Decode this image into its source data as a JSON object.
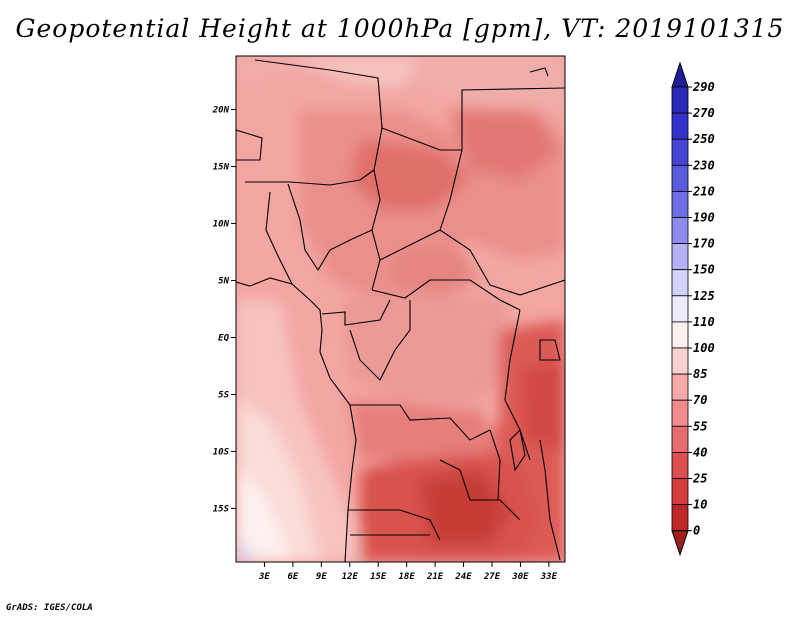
{
  "title": "Geopotential Height at 1000hPa [gpm], VT: 2019101315",
  "credit": "GrADS: IGES/COLA",
  "map": {
    "lat_labels": [
      "20N",
      "15N",
      "10N",
      "5N",
      "EQ",
      "5S",
      "10S",
      "15S"
    ],
    "lat_values": [
      20,
      15,
      10,
      5,
      0,
      -5,
      -10,
      -15
    ],
    "lon_labels": [
      "3E",
      "6E",
      "9E",
      "12E",
      "15E",
      "18E",
      "21E",
      "24E",
      "27E",
      "30E",
      "33E"
    ],
    "lon_values": [
      3,
      6,
      9,
      12,
      15,
      18,
      21,
      24,
      27,
      30,
      33
    ],
    "lat_range": [
      -19.7,
      24.7
    ],
    "lon_range": [
      0,
      34.7
    ]
  },
  "colorbar": {
    "labels": [
      "290",
      "270",
      "250",
      "230",
      "210",
      "190",
      "170",
      "150",
      "125",
      "110",
      "100",
      "85",
      "70",
      "55",
      "40",
      "25",
      "10",
      "0"
    ],
    "colors": [
      "#1e1e96",
      "#2828b4",
      "#3232c8",
      "#4646d2",
      "#5a5adc",
      "#6e6ee6",
      "#8c8cf0",
      "#b4b4f5",
      "#d2d2fa",
      "#ebebfa",
      "#fdf0f0",
      "#fbd2d2",
      "#f5aaaa",
      "#f08c8c",
      "#e66e6e",
      "#dc5050",
      "#d23c3c",
      "#be2828",
      "#a01e1e"
    ]
  }
}
